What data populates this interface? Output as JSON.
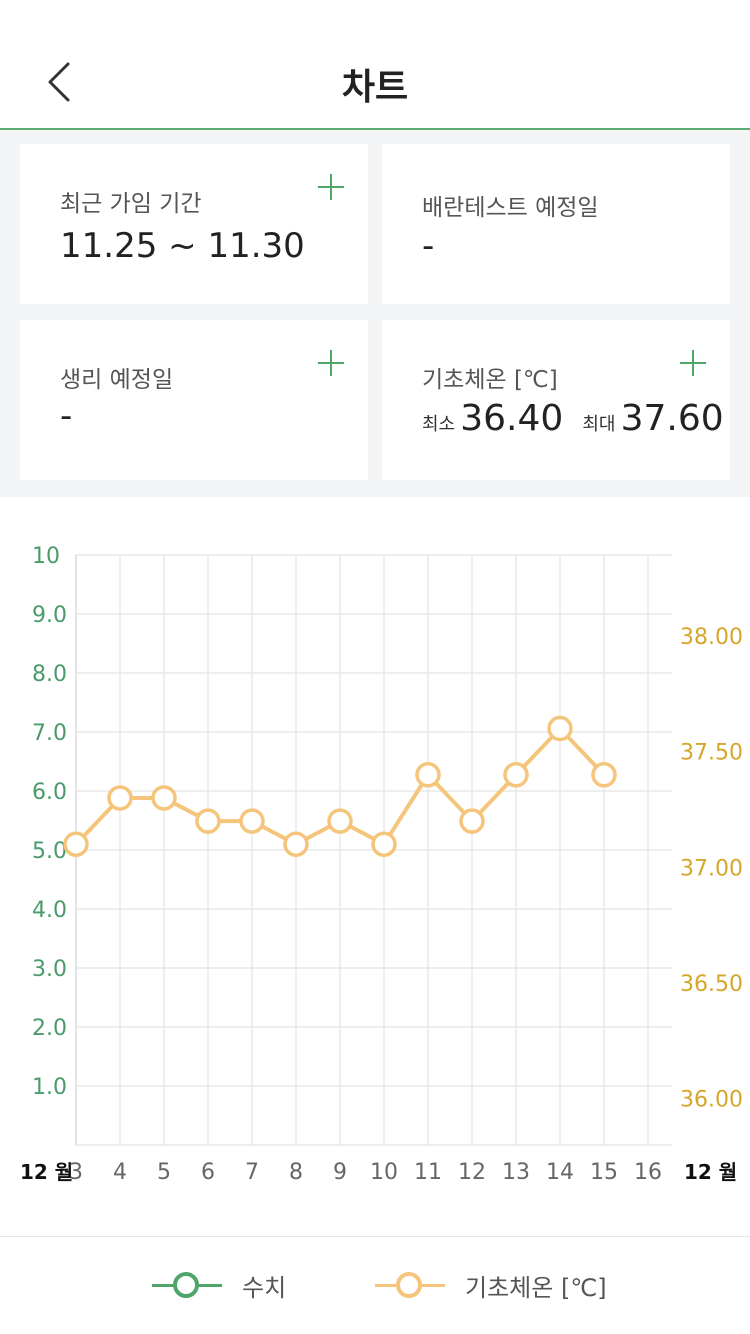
{
  "header": {
    "title": "차트",
    "back_icon": "chevron-left-icon"
  },
  "cards": {
    "recent_period": {
      "label": "최근 가임 기간",
      "value": "11.25 ~ 11.30"
    },
    "ovulation_test": {
      "label": "배란테스트 예정일",
      "value": "-"
    },
    "period_due": {
      "label": "생리 예정일",
      "value": "-"
    },
    "bbt": {
      "label": "기초체온 [℃]",
      "min_label": "최소",
      "min_value": "36.40",
      "max_label": "최대",
      "max_value": "37.60"
    }
  },
  "colors": {
    "accent_green": "#4fa56a",
    "series_orange": "#f4c57a",
    "right_axis": "#d4a62a",
    "left_axis": "#4a9a6a"
  },
  "chart_data": {
    "type": "line",
    "x_month_left": "12 월",
    "x_month_right": "12 월",
    "x_ticks": [
      "3",
      "4",
      "5",
      "6",
      "7",
      "8",
      "9",
      "10",
      "11",
      "12",
      "13",
      "14",
      "15",
      "16"
    ],
    "left_axis": {
      "ticks": [
        "10",
        "9.0",
        "8.0",
        "7.0",
        "6.0",
        "5.0",
        "4.0",
        "3.0",
        "2.0",
        "1.0"
      ],
      "ylim": [
        0,
        10
      ]
    },
    "right_axis": {
      "ticks": [
        "38.00",
        "37.50",
        "37.00",
        "36.50",
        "36.00"
      ],
      "ylim": [
        35.8,
        38.35
      ]
    },
    "series": [
      {
        "name": "수치",
        "axis": "left",
        "color": "#4fa56a",
        "x": [],
        "values": []
      },
      {
        "name": "기초체온 [℃]",
        "axis": "right",
        "color": "#f4c57a",
        "x": [
          3,
          4,
          5,
          6,
          7,
          8,
          9,
          10,
          11,
          12,
          13,
          14,
          15
        ],
        "values": [
          37.1,
          37.3,
          37.3,
          37.2,
          37.2,
          37.1,
          37.2,
          37.1,
          37.4,
          37.2,
          37.4,
          37.6,
          37.4
        ]
      }
    ]
  },
  "legend": {
    "item1": "수치",
    "item2": "기초체온 [℃]"
  }
}
